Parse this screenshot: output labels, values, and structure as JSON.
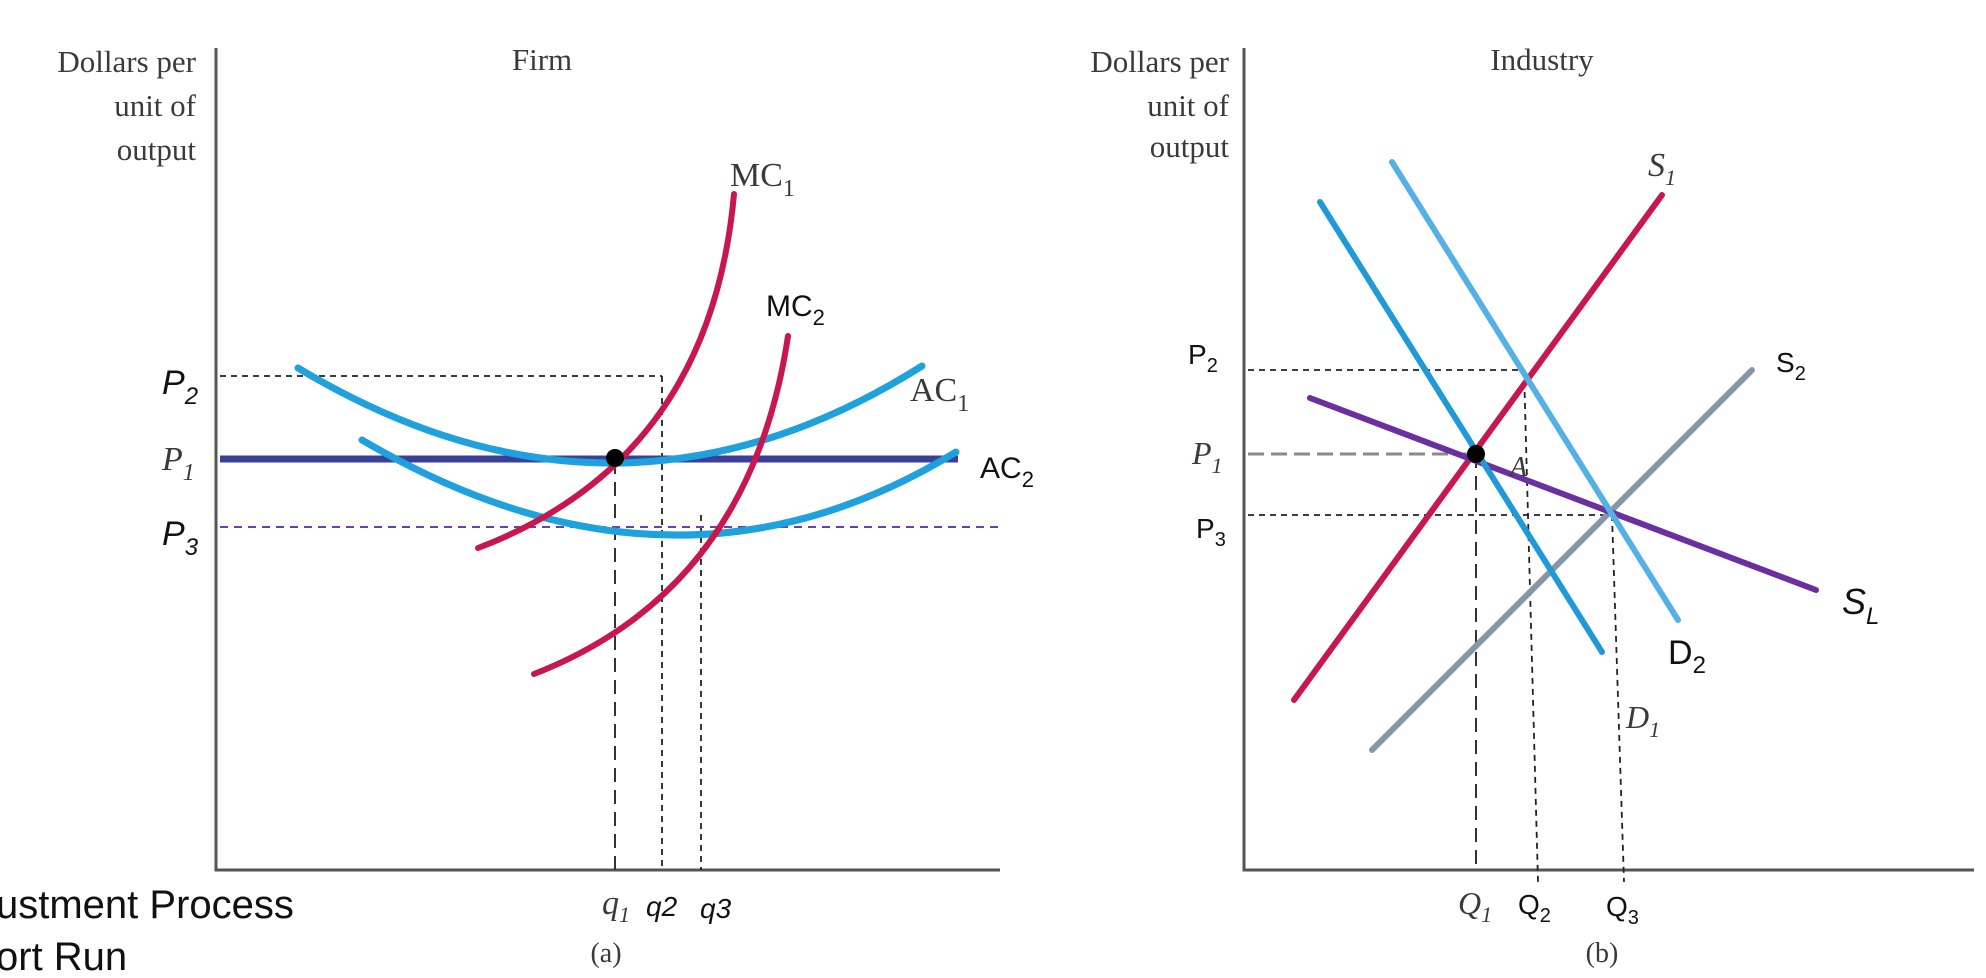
{
  "colors": {
    "mc": "#c8174f",
    "ac": "#1ea1dc",
    "price_line_p1": "#3a3f9a",
    "price_line_p3": "#6b3fb0",
    "s1": "#c8174f",
    "s2": "#8797a8",
    "sl": "#6b2fa0",
    "d1": "#1f9ad6",
    "d2": "#55b0e4",
    "point": "#000000"
  },
  "left_panel": {
    "y_axis_label": [
      "Dollars per",
      "unit of",
      "output"
    ],
    "title": "Firm",
    "caption": "(a)",
    "curves": {
      "mc1": "MC",
      "mc1_sub": "1",
      "mc2": "MC",
      "mc2_sub": "2",
      "ac1": "AC",
      "ac1_sub": "1",
      "ac2": "AC",
      "ac2_sub": "2"
    },
    "price_labels": {
      "p2": "P",
      "p2_sub": "2",
      "p1": "P",
      "p1_sub": "1",
      "p3": "P",
      "p3_sub": "3"
    },
    "quantity_labels": {
      "q1": "q",
      "q1_sub": "1",
      "q2": "q2",
      "q3": "q3"
    }
  },
  "right_panel": {
    "y_axis_label": [
      "Dollars per",
      "unit of",
      "output"
    ],
    "title": "Industry",
    "caption": "(b)",
    "curves": {
      "s1": "S",
      "s1_sub": "1",
      "s2": "S",
      "s2_sub": "2",
      "sl": "S",
      "sl_sub": "L",
      "d1": "D",
      "d1_sub": "1",
      "d2": "D",
      "d2_sub": "2"
    },
    "point_label": "A",
    "price_labels": {
      "p2": "P",
      "p2_sub": "2",
      "p1": "P",
      "p1_sub": "1",
      "p3": "P",
      "p3_sub": "3"
    },
    "quantity_labels": {
      "q1": "Q",
      "q1_sub": "1",
      "q2": "Q",
      "q2_sub": "2",
      "q3": "Q",
      "q3_sub": "3"
    }
  },
  "slide_text": {
    "line1": "ustment Process",
    "line2": "ort Run"
  }
}
